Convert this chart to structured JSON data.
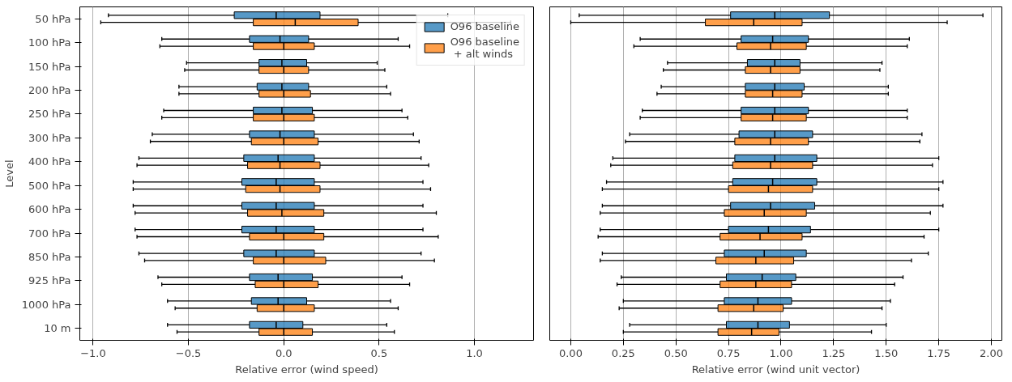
{
  "chart_data": [
    {
      "type": "box",
      "orientation": "horizontal",
      "xlabel": "Relative error (wind speed)",
      "ylabel": "Level",
      "categories": [
        "50 hPa",
        "100 hPa",
        "150 hPa",
        "200 hPa",
        "250 hPa",
        "300 hPa",
        "400 hPa",
        "500 hPa",
        "600 hPa",
        "700 hPa",
        "850 hPa",
        "925 hPa",
        "1000 hPa",
        "10 m"
      ],
      "xlim": [
        -1.07,
        1.31
      ],
      "xticks": [
        {
          "value": -1.0,
          "label": "−1.0"
        },
        {
          "value": -0.5,
          "label": "−0.5"
        },
        {
          "value": 0.0,
          "label": "0.0"
        },
        {
          "value": 0.5,
          "label": "0.5"
        },
        {
          "value": 1.0,
          "label": "1.0"
        }
      ],
      "grid": "x",
      "legend": "top right",
      "series": [
        {
          "name": "O96 baseline",
          "color": "#1f77b4",
          "boxes": [
            {
              "low": -0.92,
              "q1": -0.26,
              "median": -0.04,
              "q3": 0.19,
              "high": 0.86
            },
            {
              "low": -0.64,
              "q1": -0.18,
              "median": -0.02,
              "q3": 0.13,
              "high": 0.6
            },
            {
              "low": -0.51,
              "q1": -0.13,
              "median": -0.01,
              "q3": 0.12,
              "high": 0.49
            },
            {
              "low": -0.55,
              "q1": -0.14,
              "median": -0.01,
              "q3": 0.13,
              "high": 0.54
            },
            {
              "low": -0.63,
              "q1": -0.16,
              "median": -0.01,
              "q3": 0.15,
              "high": 0.62
            },
            {
              "low": -0.69,
              "q1": -0.18,
              "median": -0.02,
              "q3": 0.16,
              "high": 0.68
            },
            {
              "low": -0.76,
              "q1": -0.21,
              "median": -0.03,
              "q3": 0.16,
              "high": 0.72
            },
            {
              "low": -0.79,
              "q1": -0.22,
              "median": -0.04,
              "q3": 0.16,
              "high": 0.73
            },
            {
              "low": -0.79,
              "q1": -0.22,
              "median": -0.04,
              "q3": 0.16,
              "high": 0.73
            },
            {
              "low": -0.78,
              "q1": -0.22,
              "median": -0.04,
              "q3": 0.16,
              "high": 0.73
            },
            {
              "low": -0.76,
              "q1": -0.21,
              "median": -0.04,
              "q3": 0.16,
              "high": 0.72
            },
            {
              "low": -0.66,
              "q1": -0.18,
              "median": -0.03,
              "q3": 0.15,
              "high": 0.62
            },
            {
              "low": -0.61,
              "q1": -0.17,
              "median": -0.03,
              "q3": 0.12,
              "high": 0.56
            },
            {
              "low": -0.61,
              "q1": -0.18,
              "median": -0.04,
              "q3": 0.1,
              "high": 0.54
            }
          ]
        },
        {
          "name": "O96 baseline\n + alt winds",
          "color": "#ff7f0e",
          "boxes": [
            {
              "low": -0.96,
              "q1": -0.16,
              "median": 0.06,
              "q3": 0.39,
              "high": 1.19
            },
            {
              "low": -0.65,
              "q1": -0.16,
              "median": 0.0,
              "q3": 0.16,
              "high": 0.66
            },
            {
              "low": -0.52,
              "q1": -0.13,
              "median": 0.0,
              "q3": 0.13,
              "high": 0.53
            },
            {
              "low": -0.55,
              "q1": -0.13,
              "median": 0.0,
              "q3": 0.14,
              "high": 0.56
            },
            {
              "low": -0.64,
              "q1": -0.16,
              "median": 0.0,
              "q3": 0.16,
              "high": 0.65
            },
            {
              "low": -0.7,
              "q1": -0.17,
              "median": 0.0,
              "q3": 0.18,
              "high": 0.71
            },
            {
              "low": -0.77,
              "q1": -0.19,
              "median": -0.02,
              "q3": 0.19,
              "high": 0.76
            },
            {
              "low": -0.79,
              "q1": -0.2,
              "median": -0.02,
              "q3": 0.19,
              "high": 0.77
            },
            {
              "low": -0.78,
              "q1": -0.19,
              "median": -0.01,
              "q3": 0.21,
              "high": 0.8
            },
            {
              "low": -0.77,
              "q1": -0.18,
              "median": 0.0,
              "q3": 0.21,
              "high": 0.81
            },
            {
              "low": -0.73,
              "q1": -0.16,
              "median": 0.0,
              "q3": 0.22,
              "high": 0.79
            },
            {
              "low": -0.64,
              "q1": -0.15,
              "median": 0.0,
              "q3": 0.18,
              "high": 0.66
            },
            {
              "low": -0.57,
              "q1": -0.14,
              "median": 0.0,
              "q3": 0.16,
              "high": 0.6
            },
            {
              "low": -0.56,
              "q1": -0.13,
              "median": 0.0,
              "q3": 0.15,
              "high": 0.58
            }
          ]
        }
      ]
    },
    {
      "type": "box",
      "orientation": "horizontal",
      "xlabel": "Relative error (wind unit vector)",
      "tick_labels": "x",
      "categories": [
        null,
        null,
        null,
        null,
        null,
        null,
        null,
        null,
        null,
        null,
        null,
        null,
        null,
        null
      ],
      "xlim": [
        -0.1,
        2.05
      ],
      "xticks": [
        {
          "value": 0.0,
          "label": "0.00"
        },
        {
          "value": 0.25,
          "label": "0.25"
        },
        {
          "value": 0.5,
          "label": "0.50"
        },
        {
          "value": 0.75,
          "label": "0.75"
        },
        {
          "value": 1.0,
          "label": "1.00"
        },
        {
          "value": 1.25,
          "label": "1.25"
        },
        {
          "value": 1.5,
          "label": "1.50"
        },
        {
          "value": 1.75,
          "label": "1.75"
        },
        {
          "value": 2.0,
          "label": "2.00"
        }
      ],
      "grid": "x",
      "series": [
        {
          "color": "#1f77b4",
          "boxes": [
            {
              "low": 0.04,
              "q1": 0.76,
              "median": 0.97,
              "q3": 1.23,
              "high": 1.96
            },
            {
              "low": 0.33,
              "q1": 0.81,
              "median": 0.96,
              "q3": 1.13,
              "high": 1.61
            },
            {
              "low": 0.46,
              "q1": 0.84,
              "median": 0.97,
              "q3": 1.09,
              "high": 1.48
            },
            {
              "low": 0.43,
              "q1": 0.83,
              "median": 0.97,
              "q3": 1.11,
              "high": 1.51
            },
            {
              "low": 0.34,
              "q1": 0.81,
              "median": 0.97,
              "q3": 1.13,
              "high": 1.6
            },
            {
              "low": 0.28,
              "q1": 0.8,
              "median": 0.97,
              "q3": 1.15,
              "high": 1.67
            },
            {
              "low": 0.2,
              "q1": 0.78,
              "median": 0.97,
              "q3": 1.17,
              "high": 1.75
            },
            {
              "low": 0.17,
              "q1": 0.77,
              "median": 0.96,
              "q3": 1.17,
              "high": 1.77
            },
            {
              "low": 0.15,
              "q1": 0.76,
              "median": 0.95,
              "q3": 1.16,
              "high": 1.77
            },
            {
              "low": 0.14,
              "q1": 0.75,
              "median": 0.94,
              "q3": 1.14,
              "high": 1.75
            },
            {
              "low": 0.15,
              "q1": 0.73,
              "median": 0.92,
              "q3": 1.12,
              "high": 1.7
            },
            {
              "low": 0.24,
              "q1": 0.74,
              "median": 0.91,
              "q3": 1.07,
              "high": 1.58
            },
            {
              "low": 0.25,
              "q1": 0.73,
              "median": 0.89,
              "q3": 1.05,
              "high": 1.52
            },
            {
              "low": 0.28,
              "q1": 0.74,
              "median": 0.89,
              "q3": 1.04,
              "high": 1.5
            }
          ]
        },
        {
          "color": "#ff7f0e",
          "boxes": [
            {
              "low": 0.0,
              "q1": 0.64,
              "median": 0.87,
              "q3": 1.1,
              "high": 1.79
            },
            {
              "low": 0.3,
              "q1": 0.79,
              "median": 0.95,
              "q3": 1.12,
              "high": 1.6
            },
            {
              "low": 0.44,
              "q1": 0.83,
              "median": 0.95,
              "q3": 1.09,
              "high": 1.47
            },
            {
              "low": 0.41,
              "q1": 0.83,
              "median": 0.96,
              "q3": 1.1,
              "high": 1.51
            },
            {
              "low": 0.33,
              "q1": 0.81,
              "median": 0.96,
              "q3": 1.12,
              "high": 1.6
            },
            {
              "low": 0.26,
              "q1": 0.78,
              "median": 0.95,
              "q3": 1.13,
              "high": 1.66
            },
            {
              "low": 0.19,
              "q1": 0.77,
              "median": 0.95,
              "q3": 1.15,
              "high": 1.72
            },
            {
              "low": 0.15,
              "q1": 0.75,
              "median": 0.94,
              "q3": 1.15,
              "high": 1.75
            },
            {
              "low": 0.14,
              "q1": 0.73,
              "median": 0.92,
              "q3": 1.12,
              "high": 1.71
            },
            {
              "low": 0.13,
              "q1": 0.71,
              "median": 0.9,
              "q3": 1.1,
              "high": 1.68
            },
            {
              "low": 0.14,
              "q1": 0.69,
              "median": 0.88,
              "q3": 1.06,
              "high": 1.62
            },
            {
              "low": 0.22,
              "q1": 0.71,
              "median": 0.88,
              "q3": 1.05,
              "high": 1.54
            },
            {
              "low": 0.23,
              "q1": 0.7,
              "median": 0.87,
              "q3": 1.01,
              "high": 1.48
            },
            {
              "low": 0.25,
              "q1": 0.7,
              "median": 0.86,
              "q3": 0.99,
              "high": 1.43
            }
          ]
        }
      ]
    }
  ]
}
